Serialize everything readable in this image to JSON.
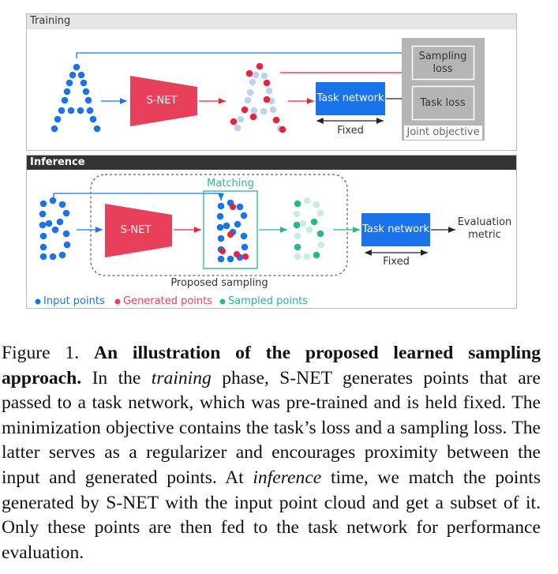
{
  "training": {
    "label": "Training",
    "snet": "S-NET",
    "task_network": "Task network",
    "fixed": "Fixed",
    "sampling_loss": "Sampling loss",
    "task_loss": "Task loss",
    "joint_objective": "Joint objective"
  },
  "inference": {
    "label": "Inference",
    "snet": "S-NET",
    "matching": "Matching",
    "task_network": "Task network",
    "fixed": "Fixed",
    "evaluation_metric": "Evaluation metric",
    "proposed_sampling": "Proposed sampling"
  },
  "legend": [
    "Input points",
    "Generated points",
    "Sampled points"
  ],
  "caption": {
    "figure": "Figure 1.",
    "title": "An illustration of the proposed learned sampling approach.",
    "text1": "In the",
    "em1": "training",
    "text2": "phase, S-NET generates points that are passed to a task network, which was pre-trained and is held fixed. The minimization objective contains the task’s loss and a sampling loss. The latter serves as a regularizer and encourages proximity between the input and generated points. At",
    "em2": "inference",
    "text3": "time, we match the points generated by S-NET with the input point cloud and get a subset of it. Only these points are then fed to the task network for performance evaluation."
  }
}
